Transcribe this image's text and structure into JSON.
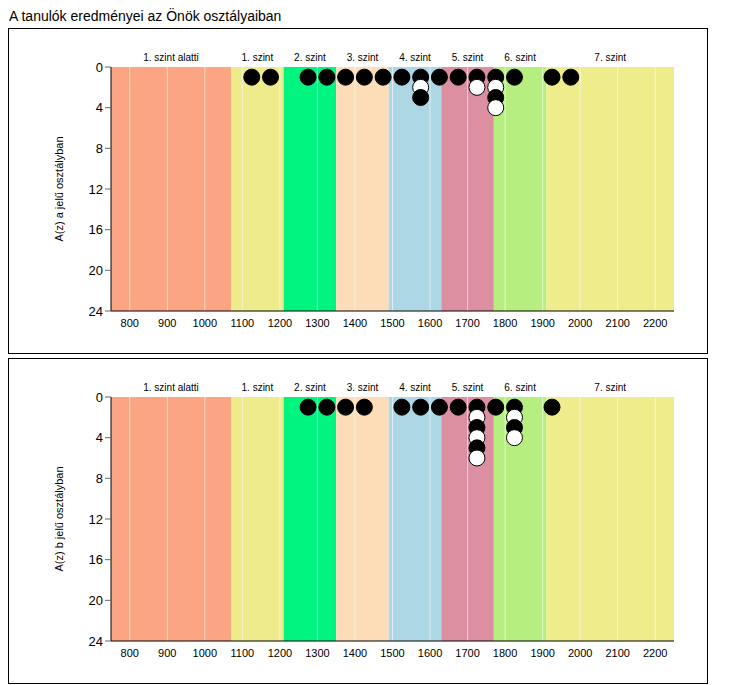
{
  "title": "A tanulók eredményei az Önök osztályaiban",
  "chart_data": [
    {
      "type": "scatter",
      "y_label": "A(z) a jelű osztályban",
      "xlim": [
        750,
        2250
      ],
      "xticks": [
        800,
        900,
        1000,
        1100,
        1200,
        1300,
        1400,
        1500,
        1600,
        1700,
        1800,
        1900,
        2000,
        2100,
        2200
      ],
      "ylim": [
        0,
        24
      ],
      "yticks": [
        0,
        4,
        8,
        12,
        16,
        20,
        24
      ],
      "grid": true,
      "marker": "circle",
      "bands": [
        {
          "label": "1. szint alatti",
          "from": 750,
          "to": 1070,
          "color": "#fca582"
        },
        {
          "label": "1. szint",
          "from": 1070,
          "to": 1210,
          "color": "#eeeb8c"
        },
        {
          "label": "2. szint",
          "from": 1210,
          "to": 1350,
          "color": "#00f580"
        },
        {
          "label": "3. szint",
          "from": 1350,
          "to": 1490,
          "color": "#fddcb8"
        },
        {
          "label": "4. szint",
          "from": 1490,
          "to": 1630,
          "color": "#aed7e6"
        },
        {
          "label": "5. szint",
          "from": 1630,
          "to": 1770,
          "color": "#dc8fa0"
        },
        {
          "label": "6. szint",
          "from": 1770,
          "to": 1910,
          "color": "#b6ee80"
        },
        {
          "label": "7. szint",
          "from": 1910,
          "to": 2250,
          "color": "#efec8c"
        }
      ],
      "x": [
        1125,
        1175,
        1275,
        1325,
        1375,
        1425,
        1475,
        1525,
        1575,
        1575,
        1575,
        1625,
        1675,
        1725,
        1725,
        1775,
        1775,
        1775,
        1775,
        1825,
        1925,
        1975
      ],
      "values": [
        1,
        1,
        1,
        1,
        1,
        1,
        1,
        1,
        1,
        2,
        3,
        1,
        1,
        1,
        2,
        1,
        2,
        3,
        4,
        1,
        1,
        1
      ],
      "colors": [
        "#000000",
        "#000000",
        "#000000",
        "#000000",
        "#000000",
        "#000000",
        "#000000",
        "#000000",
        "#000000",
        "#ffffff",
        "#000000",
        "#000000",
        "#000000",
        "#000000",
        "#ffffff",
        "#000000",
        "#ffffff",
        "#000000",
        "#ffffff",
        "#000000",
        "#000000",
        "#000000"
      ]
    },
    {
      "type": "scatter",
      "y_label": "A(z) b jelű osztályban",
      "xlim": [
        750,
        2250
      ],
      "xticks": [
        800,
        900,
        1000,
        1100,
        1200,
        1300,
        1400,
        1500,
        1600,
        1700,
        1800,
        1900,
        2000,
        2100,
        2200
      ],
      "ylim": [
        0,
        24
      ],
      "yticks": [
        0,
        4,
        8,
        12,
        16,
        20,
        24
      ],
      "grid": true,
      "marker": "circle",
      "bands": [
        {
          "label": "1. szint alatti",
          "from": 750,
          "to": 1070,
          "color": "#fca582"
        },
        {
          "label": "1. szint",
          "from": 1070,
          "to": 1210,
          "color": "#eeeb8c"
        },
        {
          "label": "2. szint",
          "from": 1210,
          "to": 1350,
          "color": "#00f580"
        },
        {
          "label": "3. szint",
          "from": 1350,
          "to": 1490,
          "color": "#fddcb8"
        },
        {
          "label": "4. szint",
          "from": 1490,
          "to": 1630,
          "color": "#aed7e6"
        },
        {
          "label": "5. szint",
          "from": 1630,
          "to": 1770,
          "color": "#dc8fa0"
        },
        {
          "label": "6. szint",
          "from": 1770,
          "to": 1910,
          "color": "#b6ee80"
        },
        {
          "label": "7. szint",
          "from": 1910,
          "to": 2250,
          "color": "#efec8c"
        }
      ],
      "x": [
        1275,
        1325,
        1375,
        1425,
        1525,
        1575,
        1625,
        1675,
        1725,
        1725,
        1725,
        1725,
        1725,
        1725,
        1775,
        1825,
        1825,
        1825,
        1825,
        1925
      ],
      "values": [
        1,
        1,
        1,
        1,
        1,
        1,
        1,
        1,
        1,
        2,
        3,
        4,
        5,
        6,
        1,
        1,
        2,
        3,
        4,
        1
      ],
      "colors": [
        "#000000",
        "#000000",
        "#000000",
        "#000000",
        "#000000",
        "#000000",
        "#000000",
        "#000000",
        "#000000",
        "#ffffff",
        "#000000",
        "#ffffff",
        "#000000",
        "#ffffff",
        "#000000",
        "#000000",
        "#ffffff",
        "#000000",
        "#ffffff",
        "#000000"
      ]
    }
  ]
}
